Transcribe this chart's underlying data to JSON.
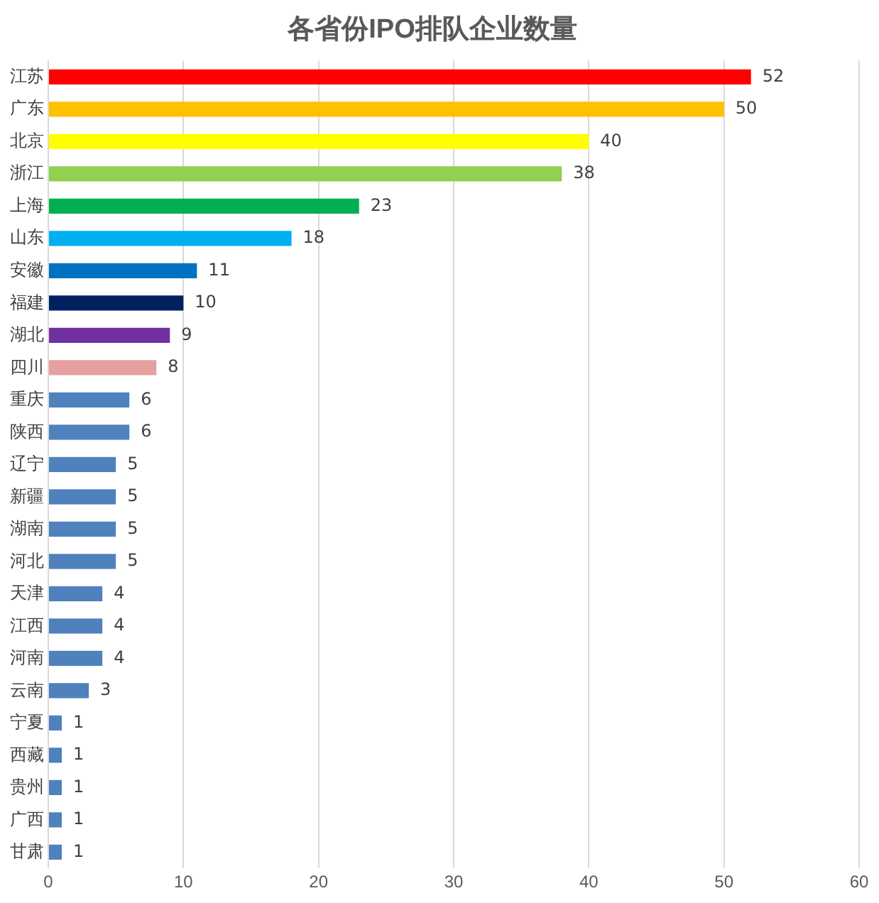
{
  "chart_data": {
    "type": "bar",
    "orientation": "horizontal",
    "title": "各省份IPO排队企业数量",
    "categories": [
      "江苏",
      "广东",
      "北京",
      "浙江",
      "上海",
      "山东",
      "安徽",
      "福建",
      "湖北",
      "四川",
      "重庆",
      "陕西",
      "辽宁",
      "新疆",
      "湖南",
      "河北",
      "天津",
      "江西",
      "河南",
      "云南",
      "宁夏",
      "西藏",
      "贵州",
      "广西",
      "甘肃"
    ],
    "values": [
      52,
      50,
      40,
      38,
      23,
      18,
      11,
      10,
      9,
      8,
      6,
      6,
      5,
      5,
      5,
      5,
      4,
      4,
      4,
      3,
      1,
      1,
      1,
      1,
      1
    ],
    "colors": [
      "#ff0000",
      "#ffc000",
      "#ffff00",
      "#92d050",
      "#00b050",
      "#00b0f0",
      "#0070c0",
      "#002060",
      "#7030a0",
      "#e6a0a0",
      "#4f81bd",
      "#4f81bd",
      "#4f81bd",
      "#4f81bd",
      "#4f81bd",
      "#4f81bd",
      "#4f81bd",
      "#4f81bd",
      "#4f81bd",
      "#4f81bd",
      "#4f81bd",
      "#4f81bd",
      "#4f81bd",
      "#4f81bd",
      "#4f81bd"
    ],
    "xlim": [
      0,
      60
    ],
    "xticks": [
      0,
      10,
      20,
      30,
      40,
      50,
      60
    ],
    "grid": "x",
    "data_labels": true,
    "legend": false
  }
}
